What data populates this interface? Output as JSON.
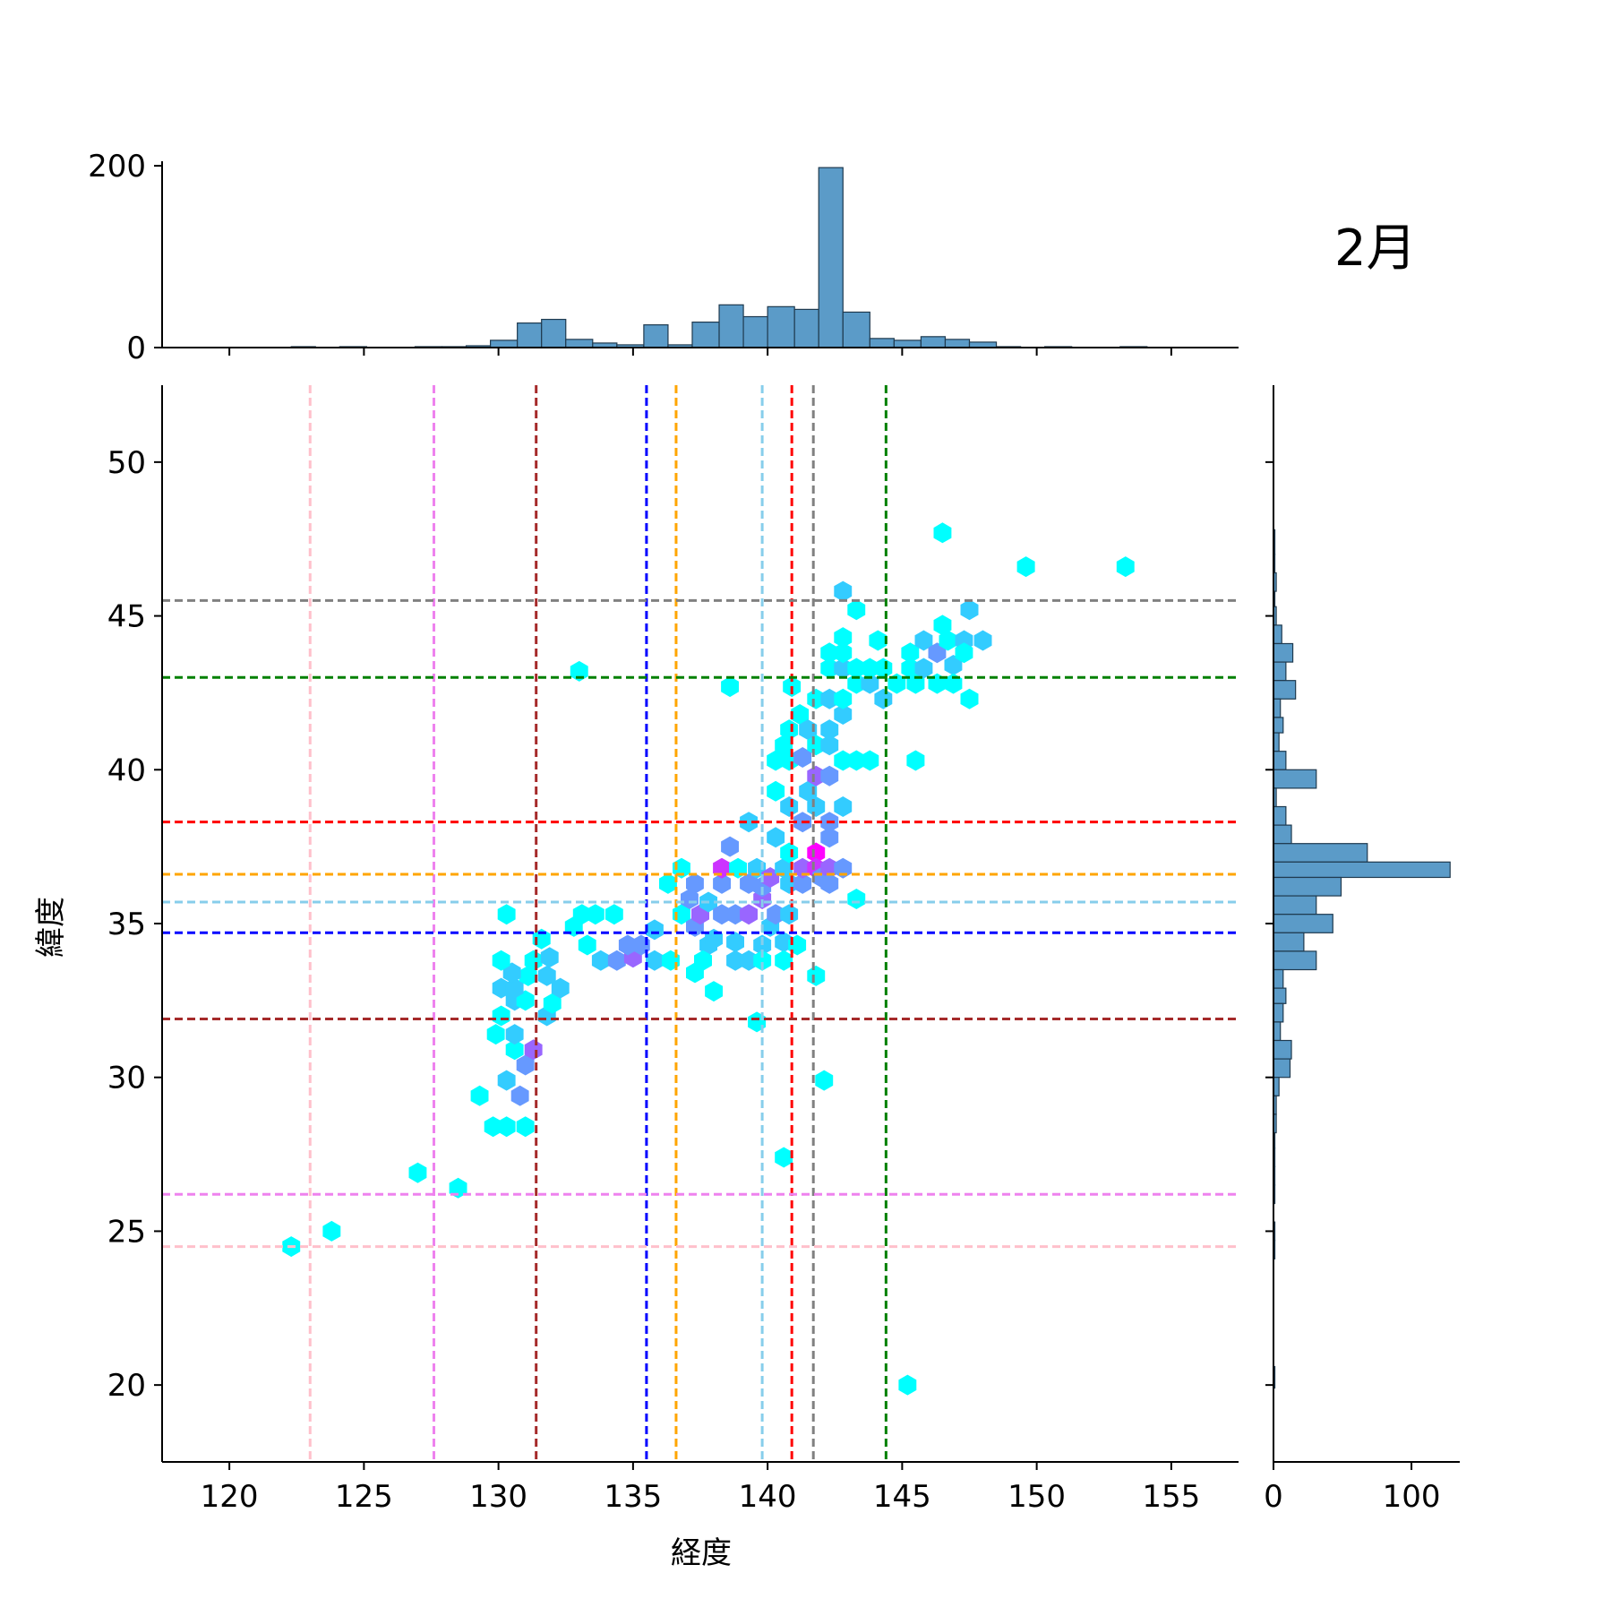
{
  "chart_data": {
    "type": "hexbin",
    "title": "2月",
    "xlabel": "経度",
    "ylabel": "緯度",
    "xlim": [
      117.5,
      157.5
    ],
    "ylim": [
      17.5,
      52.5
    ],
    "xticks": [
      120,
      125,
      130,
      135,
      140,
      145,
      150,
      155
    ],
    "yticks": [
      20,
      25,
      30,
      35,
      40,
      45,
      50
    ],
    "grid": false,
    "colors": {
      "bar_fill": "#5b9bc8",
      "bar_edge": "#1f3a4f",
      "hex_low": "#00ffff",
      "hex_high": "#ff00ff"
    },
    "reference_lines": {
      "vertical": [
        {
          "x": 123.0,
          "color": "pink"
        },
        {
          "x": 127.6,
          "color": "violet"
        },
        {
          "x": 131.4,
          "color": "brown"
        },
        {
          "x": 135.5,
          "color": "blue"
        },
        {
          "x": 136.6,
          "color": "orange"
        },
        {
          "x": 139.8,
          "color": "skyblue"
        },
        {
          "x": 140.9,
          "color": "red"
        },
        {
          "x": 141.7,
          "color": "gray"
        },
        {
          "x": 144.4,
          "color": "green"
        }
      ],
      "horizontal": [
        {
          "y": 45.5,
          "color": "gray"
        },
        {
          "y": 43.0,
          "color": "green"
        },
        {
          "y": 38.3,
          "color": "red"
        },
        {
          "y": 36.6,
          "color": "orange"
        },
        {
          "y": 35.7,
          "color": "skyblue"
        },
        {
          "y": 34.7,
          "color": "blue"
        },
        {
          "y": 31.9,
          "color": "brown"
        },
        {
          "y": 26.2,
          "color": "violet"
        },
        {
          "y": 24.5,
          "color": "pink"
        }
      ]
    },
    "x_histogram": {
      "ylim": [
        0,
        205
      ],
      "yticks": [
        0,
        200
      ],
      "bins": [
        [
          117.6,
          118.5,
          0
        ],
        [
          118.5,
          119.4,
          0
        ],
        [
          119.4,
          120.4,
          0
        ],
        [
          120.4,
          121.3,
          0
        ],
        [
          121.3,
          122.3,
          0
        ],
        [
          122.3,
          123.2,
          1
        ],
        [
          123.2,
          124.1,
          0
        ],
        [
          124.1,
          125.1,
          1
        ],
        [
          125.1,
          126.0,
          0
        ],
        [
          126.0,
          126.9,
          0
        ],
        [
          126.9,
          127.9,
          1
        ],
        [
          127.9,
          128.8,
          1
        ],
        [
          128.8,
          129.7,
          2
        ],
        [
          129.7,
          130.7,
          8
        ],
        [
          130.7,
          131.6,
          27
        ],
        [
          131.6,
          132.5,
          31
        ],
        [
          132.5,
          133.5,
          9
        ],
        [
          133.5,
          134.4,
          5
        ],
        [
          134.4,
          135.4,
          3
        ],
        [
          135.4,
          136.3,
          25
        ],
        [
          136.3,
          137.2,
          3
        ],
        [
          137.2,
          138.2,
          28
        ],
        [
          138.2,
          139.1,
          47
        ],
        [
          139.1,
          140.0,
          34
        ],
        [
          140.0,
          141.0,
          45
        ],
        [
          141.0,
          141.9,
          42
        ],
        [
          141.9,
          142.8,
          198
        ],
        [
          142.8,
          143.8,
          39
        ],
        [
          143.8,
          144.7,
          10
        ],
        [
          144.7,
          145.7,
          8
        ],
        [
          145.7,
          146.6,
          12
        ],
        [
          146.6,
          147.5,
          9
        ],
        [
          147.5,
          148.5,
          6
        ],
        [
          148.5,
          149.4,
          1
        ],
        [
          149.4,
          150.3,
          0
        ],
        [
          150.3,
          151.3,
          1
        ],
        [
          151.3,
          152.2,
          0
        ],
        [
          152.2,
          153.1,
          0
        ],
        [
          153.1,
          154.1,
          1
        ],
        [
          154.1,
          155.0,
          0
        ],
        [
          155.0,
          155.9,
          0
        ],
        [
          155.9,
          156.9,
          0
        ]
      ]
    },
    "y_histogram": {
      "xlim": [
        0,
        135
      ],
      "xticks": [
        0,
        100
      ],
      "bins": [
        [
          47.8,
          47.0,
          1
        ],
        [
          47.0,
          46.4,
          1
        ],
        [
          46.4,
          45.8,
          2
        ],
        [
          45.8,
          45.3,
          1
        ],
        [
          45.3,
          44.7,
          2
        ],
        [
          44.7,
          44.1,
          6
        ],
        [
          44.1,
          43.5,
          14
        ],
        [
          43.5,
          42.9,
          9
        ],
        [
          42.9,
          42.3,
          16
        ],
        [
          42.3,
          41.7,
          5
        ],
        [
          41.7,
          41.2,
          7
        ],
        [
          41.2,
          40.6,
          4
        ],
        [
          40.6,
          40.0,
          9
        ],
        [
          40.0,
          39.4,
          31
        ],
        [
          39.4,
          38.8,
          2
        ],
        [
          38.8,
          38.2,
          9
        ],
        [
          38.2,
          37.6,
          13
        ],
        [
          37.6,
          37.0,
          68
        ],
        [
          37.0,
          36.5,
          128
        ],
        [
          36.5,
          35.9,
          49
        ],
        [
          35.9,
          35.3,
          31
        ],
        [
          35.3,
          34.7,
          43
        ],
        [
          34.7,
          34.1,
          22
        ],
        [
          34.1,
          33.5,
          31
        ],
        [
          33.5,
          32.9,
          7
        ],
        [
          32.9,
          32.4,
          9
        ],
        [
          32.4,
          31.8,
          7
        ],
        [
          31.8,
          31.2,
          5
        ],
        [
          31.2,
          30.6,
          13
        ],
        [
          30.6,
          30.0,
          12
        ],
        [
          30.0,
          29.4,
          4
        ],
        [
          29.4,
          28.8,
          2
        ],
        [
          28.8,
          28.2,
          2
        ],
        [
          28.2,
          27.7,
          1
        ],
        [
          27.7,
          27.1,
          1
        ],
        [
          27.1,
          26.5,
          1
        ],
        [
          26.5,
          25.9,
          1
        ],
        [
          25.9,
          25.3,
          0
        ],
        [
          25.3,
          24.7,
          1
        ],
        [
          24.7,
          24.1,
          1
        ],
        [
          20.6,
          19.9,
          1
        ]
      ]
    },
    "hexbins": [
      [
        122.3,
        24.5,
        1
      ],
      [
        123.8,
        25.0,
        1
      ],
      [
        127.0,
        26.9,
        1
      ],
      [
        128.5,
        26.4,
        1
      ],
      [
        129.3,
        29.4,
        1
      ],
      [
        129.8,
        28.4,
        1
      ],
      [
        130.3,
        28.4,
        1
      ],
      [
        131.0,
        28.4,
        1
      ],
      [
        130.3,
        29.9,
        2
      ],
      [
        130.8,
        29.4,
        3
      ],
      [
        131.0,
        30.4,
        3
      ],
      [
        131.3,
        30.9,
        4
      ],
      [
        130.6,
        30.9,
        1
      ],
      [
        129.9,
        31.4,
        1
      ],
      [
        130.6,
        31.4,
        2
      ],
      [
        130.1,
        32.0,
        1
      ],
      [
        130.6,
        32.5,
        2
      ],
      [
        131.0,
        32.5,
        1
      ],
      [
        130.1,
        32.9,
        2
      ],
      [
        130.6,
        32.9,
        2
      ],
      [
        131.1,
        33.3,
        1
      ],
      [
        130.5,
        33.4,
        2
      ],
      [
        130.1,
        33.8,
        1
      ],
      [
        131.3,
        33.8,
        1
      ],
      [
        131.8,
        32.0,
        2
      ],
      [
        132.0,
        32.4,
        1
      ],
      [
        132.3,
        32.9,
        2
      ],
      [
        131.8,
        33.3,
        2
      ],
      [
        131.9,
        33.9,
        2
      ],
      [
        131.6,
        34.5,
        1
      ],
      [
        130.3,
        35.3,
        1
      ],
      [
        132.8,
        34.9,
        1
      ],
      [
        133.1,
        35.3,
        1
      ],
      [
        133.6,
        35.3,
        1
      ],
      [
        134.3,
        35.3,
        1
      ],
      [
        133.3,
        34.3,
        1
      ],
      [
        133.8,
        33.8,
        2
      ],
      [
        134.4,
        33.8,
        3
      ],
      [
        135.0,
        33.9,
        4
      ],
      [
        135.3,
        34.3,
        3
      ],
      [
        135.8,
        34.8,
        2
      ],
      [
        134.8,
        34.3,
        3
      ],
      [
        135.8,
        33.8,
        2
      ],
      [
        136.4,
        33.8,
        1
      ],
      [
        136.3,
        36.3,
        1
      ],
      [
        136.8,
        36.8,
        1
      ],
      [
        136.8,
        35.3,
        1
      ],
      [
        137.1,
        35.8,
        3
      ],
      [
        137.3,
        34.9,
        3
      ],
      [
        137.5,
        35.3,
        4
      ],
      [
        137.3,
        36.3,
        3
      ],
      [
        137.8,
        35.7,
        2
      ],
      [
        137.8,
        34.3,
        2
      ],
      [
        137.3,
        33.4,
        1
      ],
      [
        137.6,
        33.8,
        1
      ],
      [
        138.0,
        34.5,
        2
      ],
      [
        138.3,
        35.3,
        3
      ],
      [
        138.3,
        36.3,
        3
      ],
      [
        138.3,
        36.8,
        5
      ],
      [
        138.0,
        32.8,
        1
      ],
      [
        138.8,
        35.3,
        3
      ],
      [
        138.8,
        34.4,
        2
      ],
      [
        138.8,
        33.8,
        2
      ],
      [
        138.9,
        36.8,
        1
      ],
      [
        139.3,
        36.3,
        3
      ],
      [
        139.3,
        35.3,
        4
      ],
      [
        139.3,
        38.3,
        2
      ],
      [
        139.3,
        33.8,
        2
      ],
      [
        138.6,
        37.5,
        3
      ],
      [
        139.6,
        36.8,
        2
      ],
      [
        139.8,
        35.8,
        4
      ],
      [
        139.8,
        34.3,
        2
      ],
      [
        139.8,
        33.8,
        1
      ],
      [
        139.8,
        36.2,
        3
      ],
      [
        140.1,
        36.5,
        4
      ],
      [
        140.1,
        34.9,
        2
      ],
      [
        139.6,
        31.8,
        1
      ],
      [
        140.3,
        35.3,
        3
      ],
      [
        140.3,
        37.8,
        2
      ],
      [
        140.3,
        39.3,
        1
      ],
      [
        140.6,
        36.8,
        2
      ],
      [
        140.6,
        34.4,
        2
      ],
      [
        140.6,
        33.8,
        1
      ],
      [
        140.8,
        35.3,
        2
      ],
      [
        140.8,
        36.3,
        2
      ],
      [
        140.8,
        37.3,
        1
      ],
      [
        140.8,
        38.8,
        2
      ],
      [
        140.8,
        40.3,
        1
      ],
      [
        140.3,
        40.3,
        1
      ],
      [
        140.6,
        40.8,
        1
      ],
      [
        140.8,
        41.3,
        1
      ],
      [
        141.2,
        41.8,
        1
      ],
      [
        140.6,
        27.4,
        1
      ],
      [
        141.1,
        34.3,
        1
      ],
      [
        141.3,
        36.3,
        3
      ],
      [
        141.3,
        36.8,
        4
      ],
      [
        141.3,
        38.3,
        3
      ],
      [
        141.3,
        40.4,
        3
      ],
      [
        141.5,
        39.3,
        2
      ],
      [
        141.5,
        41.3,
        2
      ],
      [
        141.8,
        37.3,
        6
      ],
      [
        141.8,
        36.8,
        5
      ],
      [
        141.8,
        38.8,
        2
      ],
      [
        141.8,
        40.8,
        1
      ],
      [
        141.8,
        39.8,
        4
      ],
      [
        141.8,
        42.3,
        1
      ],
      [
        141.8,
        33.3,
        1
      ],
      [
        142.0,
        36.5,
        3
      ],
      [
        142.3,
        36.8,
        4
      ],
      [
        142.3,
        37.8,
        3
      ],
      [
        142.3,
        36.3,
        3
      ],
      [
        142.3,
        38.3,
        3
      ],
      [
        142.3,
        39.8,
        3
      ],
      [
        142.3,
        40.8,
        2
      ],
      [
        142.3,
        41.3,
        2
      ],
      [
        142.3,
        42.3,
        2
      ],
      [
        142.3,
        43.3,
        1
      ],
      [
        142.3,
        43.8,
        1
      ],
      [
        142.1,
        29.9,
        1
      ],
      [
        142.8,
        36.8,
        3
      ],
      [
        142.8,
        38.8,
        2
      ],
      [
        142.8,
        40.3,
        1
      ],
      [
        142.8,
        41.8,
        2
      ],
      [
        142.8,
        42.3,
        1
      ],
      [
        142.8,
        43.3,
        2
      ],
      [
        142.8,
        43.8,
        1
      ],
      [
        142.8,
        44.3,
        1
      ],
      [
        142.8,
        45.8,
        2
      ],
      [
        143.3,
        35.8,
        1
      ],
      [
        143.3,
        40.3,
        1
      ],
      [
        143.3,
        42.8,
        1
      ],
      [
        143.3,
        43.3,
        1
      ],
      [
        143.3,
        45.2,
        1
      ],
      [
        143.8,
        40.3,
        1
      ],
      [
        143.8,
        42.8,
        2
      ],
      [
        143.8,
        43.3,
        1
      ],
      [
        144.1,
        44.2,
        1
      ],
      [
        144.3,
        42.3,
        2
      ],
      [
        144.3,
        43.3,
        1
      ],
      [
        144.8,
        42.8,
        1
      ],
      [
        145.3,
        43.3,
        1
      ],
      [
        145.3,
        43.8,
        1
      ],
      [
        145.5,
        42.8,
        1
      ],
      [
        145.5,
        40.3,
        1
      ],
      [
        145.8,
        44.2,
        2
      ],
      [
        145.8,
        43.3,
        2
      ],
      [
        146.3,
        43.8,
        3
      ],
      [
        146.3,
        42.8,
        1
      ],
      [
        146.5,
        44.7,
        1
      ],
      [
        146.5,
        47.7,
        1
      ],
      [
        146.9,
        43.4,
        2
      ],
      [
        146.9,
        42.8,
        1
      ],
      [
        146.7,
        44.2,
        1
      ],
      [
        147.3,
        44.2,
        2
      ],
      [
        147.3,
        43.8,
        1
      ],
      [
        147.5,
        45.2,
        2
      ],
      [
        147.5,
        42.3,
        1
      ],
      [
        148.0,
        44.2,
        2
      ],
      [
        149.6,
        46.6,
        1
      ],
      [
        153.3,
        46.6,
        1
      ],
      [
        145.2,
        20.0,
        1
      ],
      [
        133.0,
        43.2,
        1
      ],
      [
        138.6,
        42.7,
        1
      ],
      [
        140.9,
        42.7,
        1
      ]
    ]
  }
}
